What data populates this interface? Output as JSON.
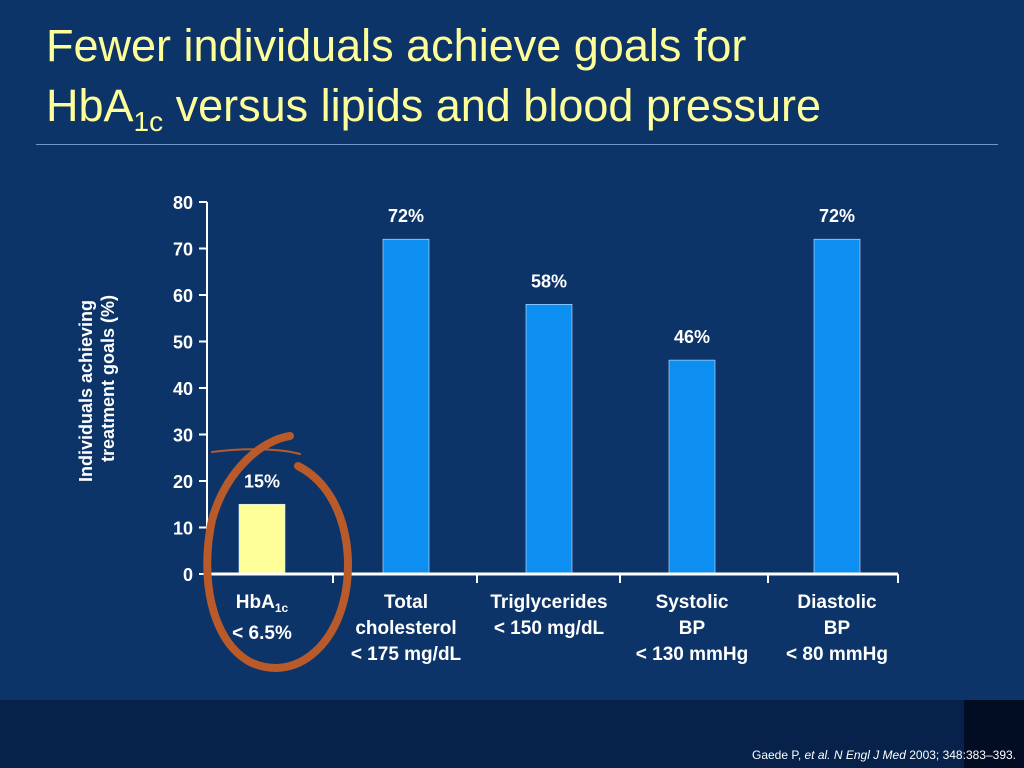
{
  "title": {
    "line1": "Fewer individuals achieve goals for",
    "line2_prefix": "HbA",
    "line2_sub": "1c",
    "line2_suffix": " versus lipids and blood pressure"
  },
  "chart_data": {
    "type": "bar",
    "categories": [
      "HbA1c < 6.5%",
      "Total cholesterol < 175 mg/dL",
      "Triglycerides < 150 mg/dL",
      "Systolic BP < 130 mmHg",
      "Diastolic BP < 80 mmHg"
    ],
    "values": [
      15,
      72,
      58,
      46,
      72
    ],
    "data_labels": [
      "15%",
      "72%",
      "58%",
      "46%",
      "72%"
    ],
    "highlight_index": 0,
    "ylabel_lines": [
      "Individuals achieving",
      "treatment goals (%)"
    ],
    "ylim": [
      0,
      80
    ],
    "yticks": [
      0,
      10,
      20,
      30,
      40,
      50,
      60,
      70,
      80
    ],
    "grid": false,
    "colors": {
      "bar": "#0c8ff0",
      "highlight_bar": "#ffff99",
      "highlight_circle": "#b85a2a",
      "axis": "#ffffff"
    }
  },
  "category_labels": [
    {
      "lines": [
        {
          "prefix": "HbA",
          "sub": "1c"
        },
        {
          "text": "< 6.5%"
        }
      ]
    },
    {
      "lines": [
        {
          "text": "Total"
        },
        {
          "text": "cholesterol"
        },
        {
          "text": "< 175 mg/dL"
        }
      ]
    },
    {
      "lines": [
        {
          "text": "Triglycerides"
        },
        {
          "text": "< 150 mg/dL"
        }
      ]
    },
    {
      "lines": [
        {
          "text": "Systolic"
        },
        {
          "text": "BP"
        },
        {
          "text": "< 130 mmHg"
        }
      ]
    },
    {
      "lines": [
        {
          "text": "Diastolic"
        },
        {
          "text": "BP"
        },
        {
          "text": "< 80 mmHg"
        }
      ]
    }
  ],
  "citation": {
    "prefix": "Gaede P, ",
    "italic": "et al. N Engl J Med",
    "suffix": " 2003; 348:383–393."
  }
}
